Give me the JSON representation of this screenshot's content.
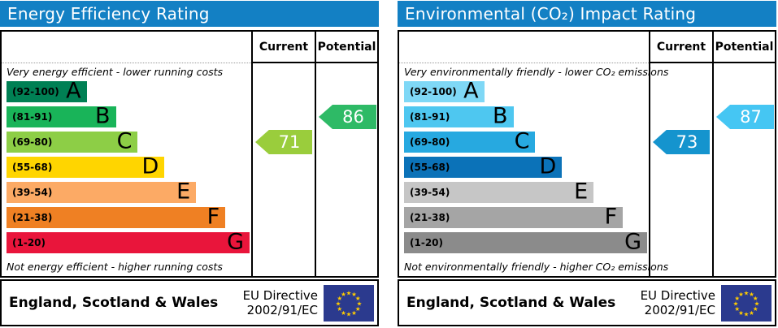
{
  "chart_data": [
    {
      "type": "bar",
      "panel": "energy-efficiency",
      "title": "Energy Efficiency Rating",
      "header_color": "#1380c4",
      "columns": {
        "current": "Current",
        "potential": "Potential"
      },
      "top_note": "Very energy efficient - lower running costs",
      "bottom_note": "Not energy efficient - higher running costs",
      "bands": [
        {
          "grade": "A",
          "range": "(92-100)",
          "min": 92,
          "max": 100,
          "color": "#008054",
          "width_pct": 33
        },
        {
          "grade": "B",
          "range": "(81-91)",
          "min": 81,
          "max": 91,
          "color": "#19b459",
          "width_pct": 45
        },
        {
          "grade": "C",
          "range": "(69-80)",
          "min": 69,
          "max": 80,
          "color": "#8dce46",
          "width_pct": 54
        },
        {
          "grade": "D",
          "range": "(55-68)",
          "min": 55,
          "max": 68,
          "color": "#ffd500",
          "width_pct": 65
        },
        {
          "grade": "E",
          "range": "(39-54)",
          "min": 39,
          "max": 54,
          "color": "#fcaa65",
          "width_pct": 78
        },
        {
          "grade": "F",
          "range": "(21-38)",
          "min": 21,
          "max": 38,
          "color": "#ef8023",
          "width_pct": 90
        },
        {
          "grade": "G",
          "range": "(1-20)",
          "min": 1,
          "max": 20,
          "color": "#e9153b",
          "width_pct": 100
        }
      ],
      "current": {
        "value": 71,
        "band": "C",
        "color": "#9acd3c"
      },
      "potential": {
        "value": 86,
        "band": "B",
        "color": "#2eba66"
      },
      "footer": {
        "region": "England, Scotland & Wales",
        "directive_line1": "EU Directive",
        "directive_line2": "2002/91/EC"
      }
    },
    {
      "type": "bar",
      "panel": "environmental-co2-impact",
      "title": "Environmental (CO₂) Impact Rating",
      "header_color": "#1380c4",
      "columns": {
        "current": "Current",
        "potential": "Potential"
      },
      "top_note": "Very environmentally friendly - lower CO₂ emissions",
      "bottom_note": "Not environmentally friendly - higher CO₂ emissions",
      "bands": [
        {
          "grade": "A",
          "range": "(92-100)",
          "min": 92,
          "max": 100,
          "color": "#7fd8f6",
          "width_pct": 33
        },
        {
          "grade": "B",
          "range": "(81-91)",
          "min": 81,
          "max": 91,
          "color": "#4ec7f0",
          "width_pct": 45
        },
        {
          "grade": "C",
          "range": "(69-80)",
          "min": 69,
          "max": 80,
          "color": "#27a9e0",
          "width_pct": 54
        },
        {
          "grade": "D",
          "range": "(55-68)",
          "min": 55,
          "max": 68,
          "color": "#0b72b8",
          "width_pct": 65
        },
        {
          "grade": "E",
          "range": "(39-54)",
          "min": 39,
          "max": 54,
          "color": "#c6c6c6",
          "width_pct": 78
        },
        {
          "grade": "F",
          "range": "(21-38)",
          "min": 21,
          "max": 38,
          "color": "#a5a5a5",
          "width_pct": 90
        },
        {
          "grade": "G",
          "range": "(1-20)",
          "min": 1,
          "max": 20,
          "color": "#8b8b8b",
          "width_pct": 100
        }
      ],
      "current": {
        "value": 73,
        "band": "C",
        "color": "#1594ce"
      },
      "potential": {
        "value": 87,
        "band": "B",
        "color": "#45c6f3"
      },
      "footer": {
        "region": "England, Scotland & Wales",
        "directive_line1": "EU Directive",
        "directive_line2": "2002/91/EC"
      }
    }
  ],
  "flag": {
    "background": "#2b3a8e",
    "star_color": "#ffcc00",
    "name": "eu-flag"
  }
}
